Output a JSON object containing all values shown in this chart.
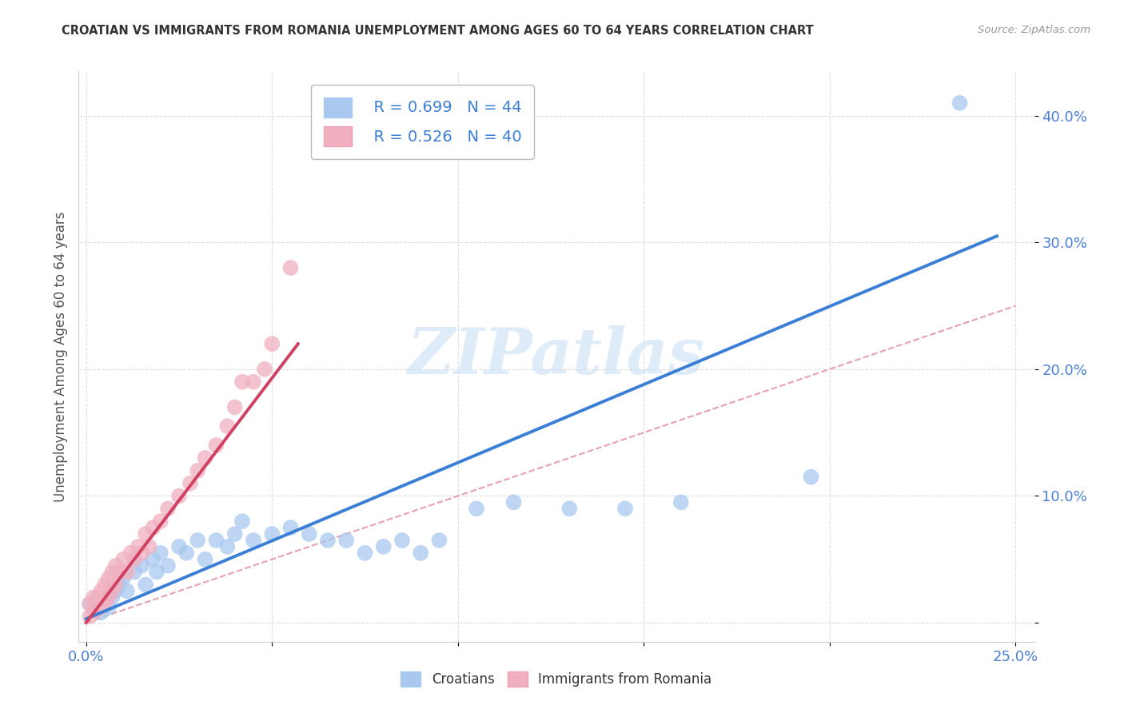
{
  "title": "CROATIAN VS IMMIGRANTS FROM ROMANIA UNEMPLOYMENT AMONG AGES 60 TO 64 YEARS CORRELATION CHART",
  "source": "Source: ZipAtlas.com",
  "ylabel": "Unemployment Among Ages 60 to 64 years",
  "xlim": [
    -0.002,
    0.255
  ],
  "ylim": [
    -0.015,
    0.435
  ],
  "yticks": [
    0.0,
    0.1,
    0.2,
    0.3,
    0.4
  ],
  "xticks": [
    0.0,
    0.05,
    0.1,
    0.15,
    0.2,
    0.25
  ],
  "xtick_labels": [
    "0.0%",
    "",
    "",
    "",
    "",
    "25.0%"
  ],
  "ytick_labels": [
    "",
    "10.0%",
    "20.0%",
    "30.0%",
    "40.0%"
  ],
  "legend1_r": "R = 0.699",
  "legend1_n": "N = 44",
  "legend2_r": "R = 0.526",
  "legend2_n": "N = 40",
  "blue_color": "#a8c8f0",
  "pink_color": "#f0b0c0",
  "line_blue": "#3a7fd5",
  "line_pink": "#d04060",
  "tick_color": "#4a7fd5",
  "diagonal_color": "#e8a0b0",
  "watermark_color": "#c8dff5",
  "watermark": "ZIPatlas",
  "title_fontsize": 10.5,
  "blue_scatter_x": [
    0.001,
    0.002,
    0.003,
    0.004,
    0.005,
    0.006,
    0.007,
    0.008,
    0.009,
    0.01,
    0.011,
    0.013,
    0.015,
    0.016,
    0.018,
    0.019,
    0.02,
    0.022,
    0.025,
    0.027,
    0.03,
    0.032,
    0.035,
    0.038,
    0.04,
    0.042,
    0.045,
    0.05,
    0.055,
    0.06,
    0.065,
    0.07,
    0.075,
    0.08,
    0.085,
    0.09,
    0.095,
    0.105,
    0.115,
    0.13,
    0.145,
    0.16,
    0.195,
    0.235
  ],
  "blue_scatter_y": [
    0.015,
    0.01,
    0.012,
    0.008,
    0.018,
    0.012,
    0.02,
    0.025,
    0.03,
    0.035,
    0.025,
    0.04,
    0.045,
    0.03,
    0.05,
    0.04,
    0.055,
    0.045,
    0.06,
    0.055,
    0.065,
    0.05,
    0.065,
    0.06,
    0.07,
    0.08,
    0.065,
    0.07,
    0.075,
    0.07,
    0.065,
    0.065,
    0.055,
    0.06,
    0.065,
    0.055,
    0.065,
    0.09,
    0.095,
    0.09,
    0.09,
    0.095,
    0.115,
    0.41
  ],
  "pink_scatter_x": [
    0.001,
    0.001,
    0.002,
    0.002,
    0.003,
    0.003,
    0.004,
    0.004,
    0.005,
    0.005,
    0.006,
    0.006,
    0.007,
    0.007,
    0.008,
    0.008,
    0.009,
    0.01,
    0.011,
    0.012,
    0.013,
    0.014,
    0.015,
    0.016,
    0.017,
    0.018,
    0.02,
    0.022,
    0.025,
    0.028,
    0.03,
    0.032,
    0.035,
    0.038,
    0.04,
    0.042,
    0.045,
    0.048,
    0.05,
    0.055
  ],
  "pink_scatter_y": [
    0.005,
    0.015,
    0.01,
    0.02,
    0.01,
    0.02,
    0.015,
    0.025,
    0.015,
    0.03,
    0.02,
    0.035,
    0.025,
    0.04,
    0.03,
    0.045,
    0.04,
    0.05,
    0.04,
    0.055,
    0.05,
    0.06,
    0.055,
    0.07,
    0.06,
    0.075,
    0.08,
    0.09,
    0.1,
    0.11,
    0.12,
    0.13,
    0.14,
    0.155,
    0.17,
    0.19,
    0.19,
    0.2,
    0.22,
    0.28
  ],
  "blue_line_x": [
    0.0,
    0.245
  ],
  "blue_line_y": [
    0.003,
    0.305
  ],
  "pink_line_x": [
    0.0,
    0.057
  ],
  "pink_line_y": [
    0.0,
    0.22
  ],
  "diag_line_x": [
    0.0,
    0.25
  ],
  "diag_line_y": [
    0.0,
    0.25
  ]
}
